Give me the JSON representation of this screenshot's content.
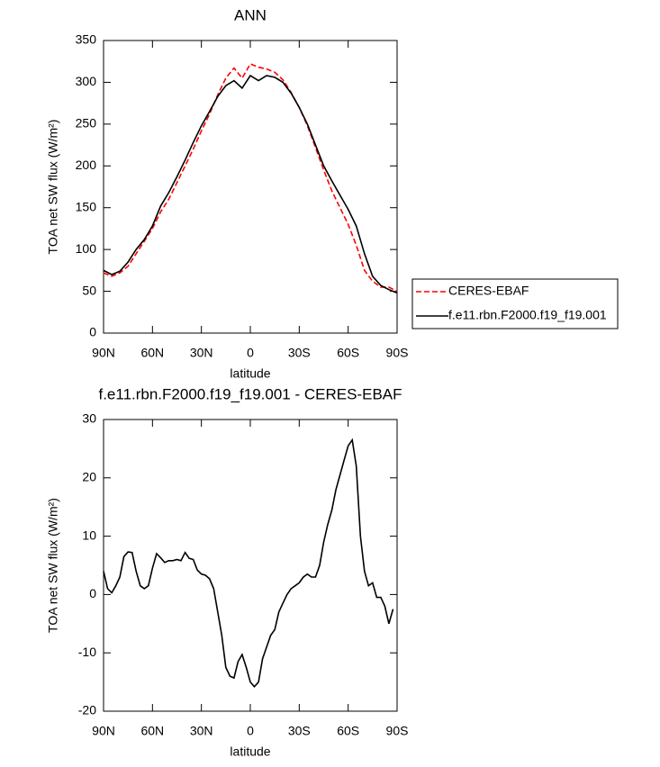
{
  "chart_data": [
    {
      "type": "line",
      "title": "ANN",
      "xlabel": "latitude",
      "ylabel": "TOA net SW flux (W/m²)",
      "xlim": [
        90,
        -90
      ],
      "xticks": [
        {
          "value": 90,
          "label": "90N"
        },
        {
          "value": 60,
          "label": "60N"
        },
        {
          "value": 30,
          "label": "30N"
        },
        0,
        {
          "value": -30,
          "label": "30S"
        },
        {
          "value": -60,
          "label": "60S"
        },
        {
          "value": -90,
          "label": "90S"
        }
      ],
      "ylim": [
        0,
        350
      ],
      "yticks": [
        0,
        50,
        100,
        150,
        200,
        250,
        300,
        350
      ],
      "legend": "right",
      "x": [
        90,
        85,
        80,
        75,
        70,
        65,
        60,
        55,
        50,
        45,
        40,
        35,
        30,
        25,
        20,
        15,
        10,
        5,
        0,
        -5,
        -10,
        -15,
        -20,
        -25,
        -30,
        -35,
        -40,
        -45,
        -50,
        -55,
        -60,
        -65,
        -70,
        -75,
        -80,
        -85,
        -90
      ],
      "series": [
        {
          "name": "CERES-EBAF",
          "color": "#ff0000",
          "line_style": "dashed",
          "values": [
            72,
            68,
            72,
            80,
            95,
            110,
            125,
            145,
            160,
            180,
            200,
            220,
            242,
            262,
            285,
            305,
            317,
            305,
            322,
            318,
            316,
            312,
            303,
            288,
            270,
            248,
            222,
            195,
            170,
            150,
            130,
            105,
            75,
            62,
            55,
            55,
            50
          ]
        },
        {
          "name": "f.e11.rbn.F2000.f19_f19.001",
          "color": "#000000",
          "line_style": "solid",
          "values": [
            75,
            70,
            74,
            85,
            100,
            112,
            128,
            152,
            168,
            187,
            207,
            228,
            248,
            265,
            283,
            296,
            302,
            293,
            308,
            302,
            308,
            306,
            300,
            287,
            270,
            250,
            225,
            200,
            182,
            165,
            148,
            128,
            95,
            68,
            57,
            52,
            48
          ]
        }
      ]
    },
    {
      "type": "line",
      "title": "f.e11.rbn.F2000.f19_f19.001 - CERES-EBAF",
      "xlabel": "latitude",
      "ylabel": "TOA net SW flux (W/m²)",
      "xlim": [
        90,
        -90
      ],
      "xticks": [
        {
          "value": 90,
          "label": "90N"
        },
        {
          "value": 60,
          "label": "60N"
        },
        {
          "value": 30,
          "label": "30N"
        },
        0,
        {
          "value": -30,
          "label": "30S"
        },
        {
          "value": -60,
          "label": "60S"
        },
        {
          "value": -90,
          "label": "90S"
        }
      ],
      "ylim": [
        -20,
        30
      ],
      "yticks": [
        -20,
        -10,
        0,
        10,
        20,
        30
      ],
      "x": [
        90,
        87.5,
        85,
        82.5,
        80,
        77.5,
        75,
        72.5,
        70,
        67.5,
        65,
        62.5,
        60,
        57.5,
        55,
        52.5,
        50,
        47.5,
        45,
        42.5,
        40,
        37.5,
        35,
        32.5,
        30,
        27.5,
        25,
        22.5,
        20,
        17.5,
        15,
        12.5,
        10,
        7.5,
        5,
        2.5,
        0,
        -2.5,
        -5,
        -7.5,
        -10,
        -12.5,
        -15,
        -17.5,
        -20,
        -22.5,
        -25,
        -27.5,
        -30,
        -32.5,
        -35,
        -37.5,
        -40,
        -42.5,
        -45,
        -47.5,
        -50,
        -52.5,
        -55,
        -57.5,
        -60,
        -62.5,
        -65,
        -67.5,
        -70,
        -72.5,
        -75,
        -77.5,
        -80,
        -82.5,
        -85,
        -87.5
      ],
      "series": [
        {
          "color": "#000000",
          "line_style": "solid",
          "values": [
            4,
            1,
            0.3,
            1.5,
            3,
            6.5,
            7.3,
            7.2,
            4,
            1.5,
            1,
            1.5,
            4.5,
            7,
            6.3,
            5.5,
            5.8,
            5.8,
            6,
            5.8,
            7.2,
            6.2,
            6,
            4.2,
            3.5,
            3.3,
            2.7,
            1,
            -3,
            -7,
            -12.5,
            -14,
            -14.3,
            -11.5,
            -10.3,
            -12.5,
            -15,
            -15.8,
            -15,
            -11,
            -9,
            -7,
            -6,
            -3,
            -1.5,
            0,
            1,
            1.5,
            2,
            3,
            3.5,
            3,
            3,
            5,
            9,
            12,
            14.5,
            18,
            20.5,
            23,
            25.5,
            26.5,
            22,
            10,
            4,
            1.5,
            2,
            -0.5,
            -0.5,
            -2,
            -5,
            -2.5
          ]
        }
      ]
    }
  ]
}
